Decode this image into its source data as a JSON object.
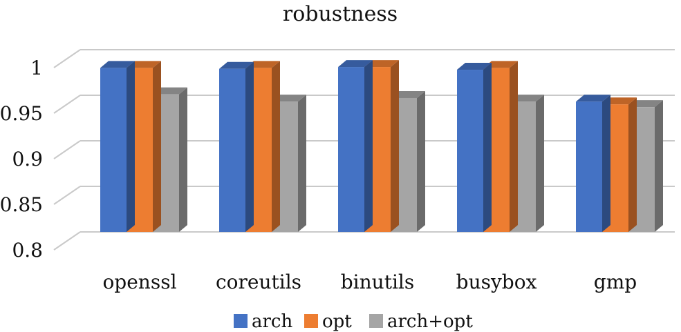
{
  "chart_data": {
    "type": "bar",
    "title": "robustness",
    "xlabel": "",
    "ylabel": "",
    "ylim": [
      0.8,
      1.0
    ],
    "yticks": [
      "0.8",
      "0.85",
      "0.9",
      "0.95",
      "1"
    ],
    "grid": true,
    "legend_position": "bottom",
    "categories": [
      "openssl",
      "coreutils",
      "binutils",
      "busybox",
      "gmp"
    ],
    "series": [
      {
        "name": "arch",
        "color": "#4472C4",
        "values": [
          0.98,
          0.979,
          0.981,
          0.978,
          0.943
        ]
      },
      {
        "name": "opt",
        "color": "#ED7D31",
        "values": [
          0.98,
          0.98,
          0.981,
          0.98,
          0.94
        ]
      },
      {
        "name": "arch+opt",
        "color": "#A5A5A5",
        "values": [
          0.951,
          0.943,
          0.947,
          0.943,
          0.937
        ]
      }
    ]
  }
}
